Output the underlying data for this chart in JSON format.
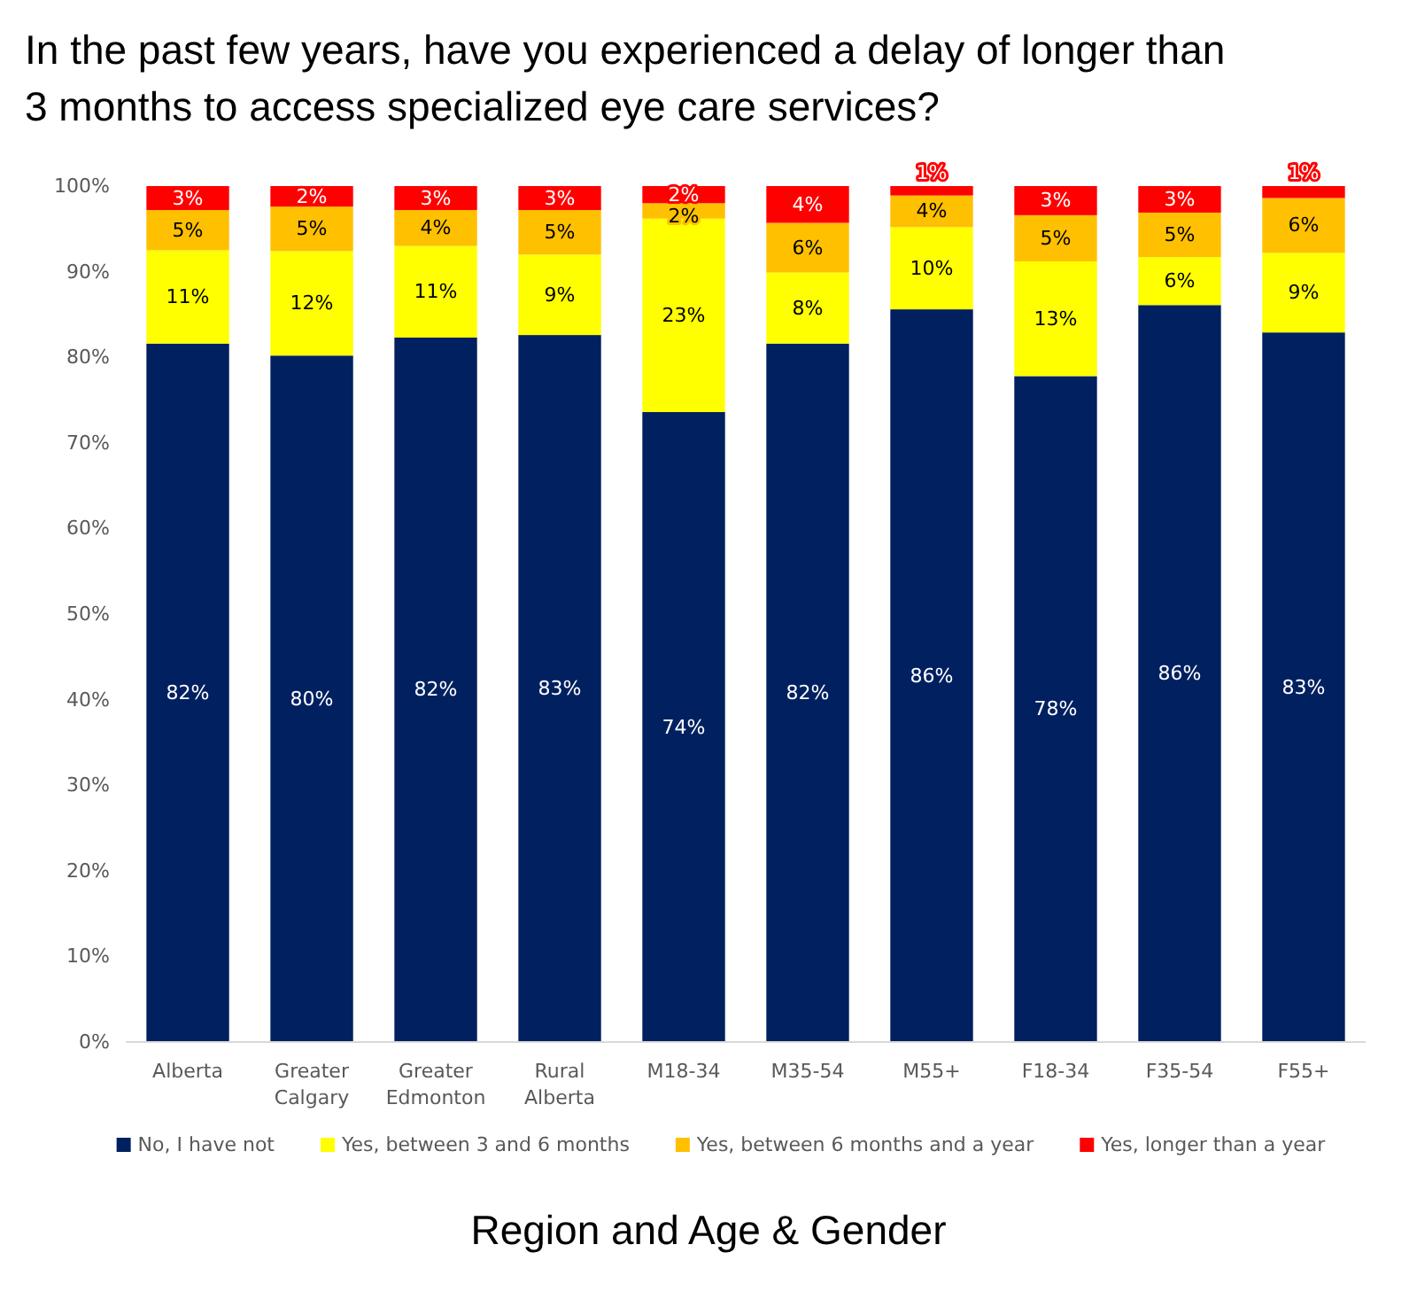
{
  "chart_data": {
    "type": "bar",
    "stacked": true,
    "title": "In the past few years, have you experienced a delay of longer than 3 months to access specialized eye care services?",
    "xlabel": "Region and Age & Gender",
    "categories": [
      "Alberta",
      "Greater Calgary",
      "Greater Edmonton",
      "Rural Alberta",
      "M18-34",
      "M35-54",
      "M55+",
      "F18-34",
      "F35-54",
      "F55+"
    ],
    "series": [
      {
        "name": "No, I have not",
        "color": "#002060",
        "values": [
          81.6,
          80.2,
          82.3,
          82.6,
          73.6,
          81.6,
          85.6,
          77.8,
          86.1,
          82.9
        ],
        "value_labels": [
          "82%",
          "80%",
          "82%",
          "83%",
          "74%",
          "82%",
          "86%",
          "78%",
          "86%",
          "83%"
        ]
      },
      {
        "name": "Yes, between 3 and 6 months",
        "color": "#ffff00",
        "values": [
          10.9,
          12.2,
          10.7,
          9.4,
          22.6,
          8.3,
          9.6,
          13.4,
          5.6,
          9.3
        ],
        "value_labels": [
          "11%",
          "12%",
          "11%",
          "9%",
          "23%",
          "8%",
          "10%",
          "13%",
          "6%",
          "9%"
        ]
      },
      {
        "name": "Yes, between 6 months and a year",
        "color": "#ffc000",
        "values": [
          4.7,
          5.2,
          4.2,
          5.2,
          1.8,
          5.8,
          3.7,
          5.4,
          5.2,
          6.4
        ],
        "value_labels": [
          "5%",
          "5%",
          "4%",
          "5%",
          "2%",
          "6%",
          "4%",
          "5%",
          "5%",
          "6%"
        ]
      },
      {
        "name": "Yes, longer than a year",
        "color": "#ff0000",
        "values": [
          2.8,
          2.4,
          2.8,
          2.8,
          2.0,
          4.3,
          1.1,
          3.4,
          3.1,
          1.4
        ],
        "value_labels": [
          "3%",
          "2%",
          "3%",
          "3%",
          "2%",
          "4%",
          "1%",
          "3%",
          "3%",
          "1%"
        ]
      }
    ],
    "ylim": [
      0,
      100
    ],
    "yticks": [
      {
        "value": 0,
        "label": "0%"
      },
      {
        "value": 10,
        "label": "10%"
      },
      {
        "value": 20,
        "label": "20%"
      },
      {
        "value": 30,
        "label": "30%"
      },
      {
        "value": 40,
        "label": "40%"
      },
      {
        "value": 50,
        "label": "50%"
      },
      {
        "value": 60,
        "label": "60%"
      },
      {
        "value": 70,
        "label": "70%"
      },
      {
        "value": 80,
        "label": "80%"
      },
      {
        "value": 90,
        "label": "90%"
      },
      {
        "value": 100,
        "label": "100%"
      }
    ],
    "legend": "bottom"
  }
}
